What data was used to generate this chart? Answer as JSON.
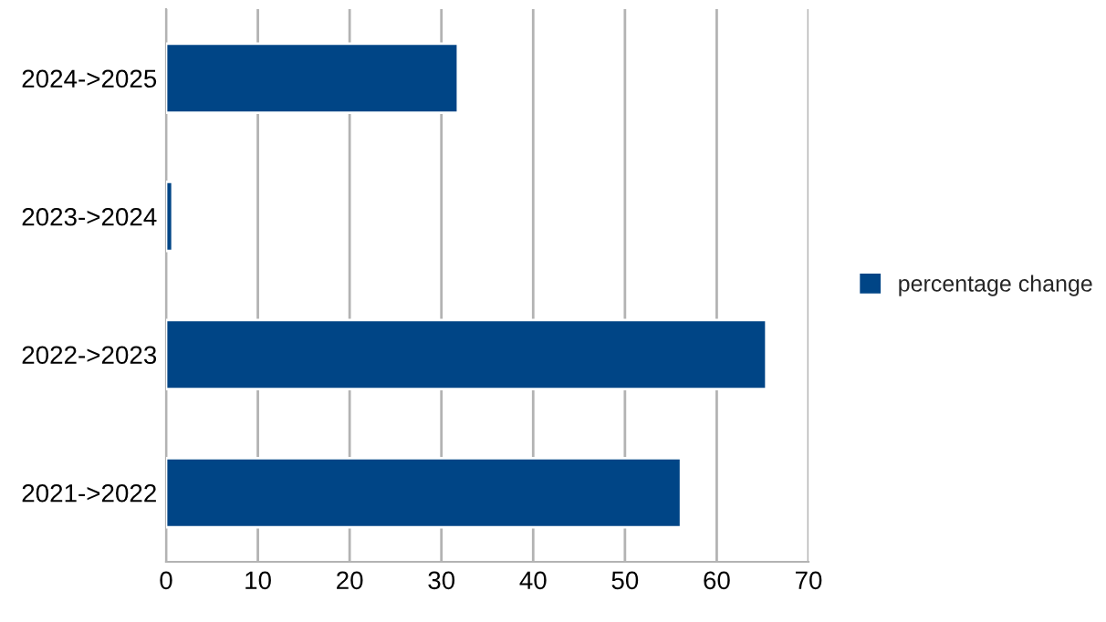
{
  "chart_data": {
    "type": "bar",
    "orientation": "horizontal",
    "categories": [
      "2024->2025",
      "2023->2024",
      "2022->2023",
      "2021->2022"
    ],
    "series": [
      {
        "name": "percentage change",
        "color": "#004586",
        "values": [
          31.8,
          0.7,
          65.4,
          56.1
        ]
      }
    ],
    "xlim": [
      0,
      70
    ],
    "xticks": [
      0,
      10,
      20,
      30,
      40,
      50,
      60,
      70
    ],
    "grid": "x",
    "legend": "right"
  }
}
